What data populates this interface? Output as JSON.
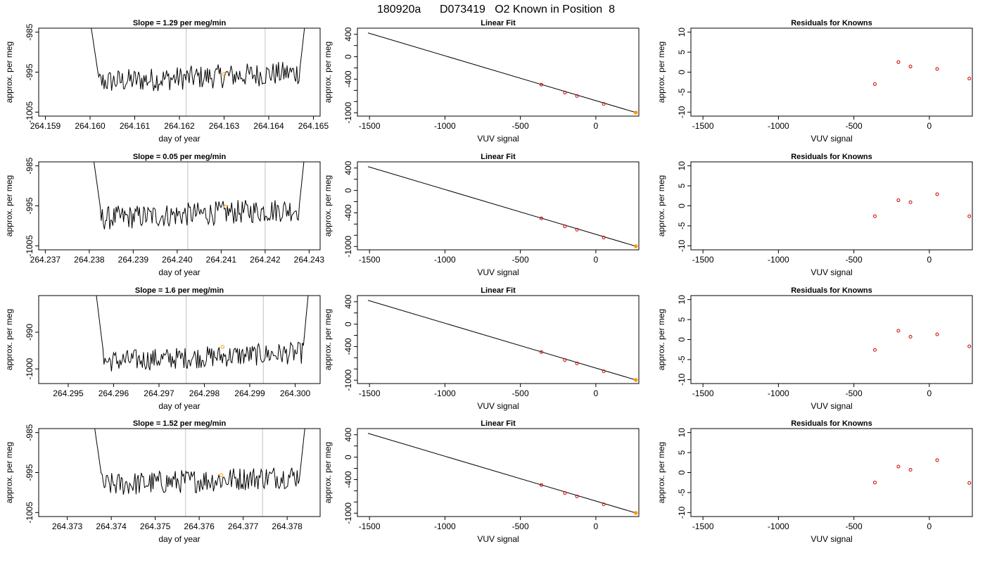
{
  "page_title": "180920a      D073419   O2 Known in Position  8",
  "colors": {
    "line": "#000000",
    "grid": "#cccccc",
    "point_highlight": "#ff9900",
    "residual_point": "#cc0000",
    "frame": "#000000"
  },
  "chart_data": [
    {
      "type": "line",
      "row": 0,
      "title": "Slope =  1.29  per meg/min",
      "xlabel": "day of year",
      "ylabel": "approx. per meg",
      "xlim": [
        264.15885,
        264.16515
      ],
      "ylim": [
        -1006,
        -984
      ],
      "xticks": [
        264.159,
        264.16,
        264.161,
        264.162,
        264.163,
        264.164,
        264.165
      ],
      "xtick_labels": [
        "264.159",
        "264.160",
        "264.161",
        "264.162",
        "264.163",
        "264.164",
        "264.165"
      ],
      "yticks": [
        -1005,
        -995,
        -985
      ],
      "ytick_labels": [
        "-1005",
        "-995",
        "-985"
      ],
      "vlines": [
        264.16215,
        264.16392
      ],
      "x_start": 264.16,
      "x_end": 264.16482,
      "base": -996.3,
      "start_peak": -982,
      "end_peak": -982,
      "highlight_point": {
        "x": 264.163,
        "y": -995.5
      }
    },
    {
      "type": "line",
      "row": 1,
      "title": "Slope =  0.05  per meg/min",
      "xlabel": "day of year",
      "ylabel": "approx. per meg",
      "xlim": [
        264.23685,
        264.24325
      ],
      "ylim": [
        -1006,
        -984
      ],
      "xticks": [
        264.237,
        264.238,
        264.239,
        264.24,
        264.241,
        264.242,
        264.243
      ],
      "xtick_labels": [
        "264.237",
        "264.238",
        "264.239",
        "264.240",
        "264.241",
        "264.242",
        "264.243"
      ],
      "yticks": [
        -1005,
        -995,
        -985
      ],
      "ytick_labels": [
        "-1005",
        "-995",
        "-985"
      ],
      "vlines": [
        264.24024,
        264.242
      ],
      "x_start": 264.23808,
      "x_end": 264.2429,
      "base": -997.0,
      "start_peak": -982,
      "end_peak": -982,
      "highlight_point": {
        "x": 264.2411,
        "y": -995.2
      }
    },
    {
      "type": "line",
      "row": 2,
      "title": "Slope =  1.6  per meg/min",
      "xlabel": "day of year",
      "ylabel": "approx. per meg",
      "xlim": [
        264.29435,
        264.30055
      ],
      "ylim": [
        -1004,
        -980
      ],
      "xticks": [
        264.295,
        264.296,
        264.297,
        264.298,
        264.299,
        264.3
      ],
      "xtick_labels": [
        "264.295",
        "264.296",
        "264.297",
        "264.298",
        "264.299",
        "264.300"
      ],
      "yticks": [
        -1000,
        -990
      ],
      "ytick_labels": [
        "-1000",
        "-990"
      ],
      "vlines": [
        264.2976,
        264.2993
      ],
      "x_start": 264.2956,
      "x_end": 264.3003,
      "base": -996.8,
      "start_peak": -978,
      "end_peak": -978,
      "highlight_point": {
        "x": 264.2984,
        "y": -994.0
      }
    },
    {
      "type": "line",
      "row": 3,
      "title": "Slope =  1.52  per meg/min",
      "xlabel": "day of year",
      "ylabel": "approx. per meg",
      "xlim": [
        264.37235,
        264.37875
      ],
      "ylim": [
        -1006,
        -984
      ],
      "xticks": [
        264.373,
        264.374,
        264.375,
        264.376,
        264.377,
        264.378
      ],
      "xtick_labels": [
        "264.373",
        "264.374",
        "264.375",
        "264.376",
        "264.377",
        "264.378"
      ],
      "yticks": [
        -1005,
        -995,
        -985
      ],
      "ytick_labels": [
        "-1005",
        "-995",
        "-985"
      ],
      "vlines": [
        264.37569,
        264.37744
      ],
      "x_start": 264.3736,
      "x_end": 264.37842,
      "base": -997.0,
      "start_peak": -982,
      "end_peak": -982,
      "highlight_point": {
        "x": 264.3765,
        "y": -995.6
      }
    },
    {
      "type": "scatter",
      "row": 0,
      "title": "Linear Fit",
      "xlabel": "VUV signal",
      "ylabel": "approx. per meg",
      "xlim": [
        -1580,
        285
      ],
      "ylim": [
        -1060,
        510
      ],
      "xticks": [
        -1500,
        -1000,
        -500,
        0
      ],
      "xtick_labels": [
        "-1500",
        "-1000",
        "-500",
        "0"
      ],
      "yticks": [
        -1000,
        -800,
        -600,
        -400,
        -200,
        0,
        200,
        400
      ],
      "ytick_labels": [
        "-1000",
        "",
        "",
        "-400",
        "",
        "0",
        "",
        "400"
      ],
      "fit_line": {
        "x": [
          -1510,
          265
        ],
        "y": [
          425,
          -996
        ]
      },
      "points": {
        "x": [
          -361,
          -205,
          -125,
          52,
          265
        ],
        "y": [
          -498,
          -640,
          -700,
          -842,
          -996
        ]
      },
      "highlight_point": {
        "x": 265,
        "y": -996
      }
    },
    {
      "type": "scatter",
      "row": 1,
      "title": "Linear Fit",
      "xlabel": "VUV signal",
      "ylabel": "approx. per meg",
      "xlim": [
        -1580,
        285
      ],
      "ylim": [
        -1060,
        510
      ],
      "xticks": [
        -1500,
        -1000,
        -500,
        0
      ],
      "xtick_labels": [
        "-1500",
        "-1000",
        "-500",
        "0"
      ],
      "yticks": [
        -1000,
        -800,
        -600,
        -400,
        -200,
        0,
        200,
        400
      ],
      "ytick_labels": [
        "-1000",
        "",
        "",
        "-400",
        "",
        "0",
        "",
        "400"
      ],
      "fit_line": {
        "x": [
          -1510,
          265
        ],
        "y": [
          425,
          -996
        ]
      },
      "points": {
        "x": [
          -361,
          -205,
          -125,
          52,
          265
        ],
        "y": [
          -498,
          -640,
          -700,
          -842,
          -996
        ]
      },
      "highlight_point": {
        "x": 265,
        "y": -996
      }
    },
    {
      "type": "scatter",
      "row": 2,
      "title": "Linear Fit",
      "xlabel": "VUV signal",
      "ylabel": "approx. per meg",
      "xlim": [
        -1580,
        285
      ],
      "ylim": [
        -1060,
        510
      ],
      "xticks": [
        -1500,
        -1000,
        -500,
        0
      ],
      "xtick_labels": [
        "-1500",
        "-1000",
        "-500",
        "0"
      ],
      "yticks": [
        -1000,
        -800,
        -600,
        -400,
        -200,
        0,
        200,
        400
      ],
      "ytick_labels": [
        "-1000",
        "",
        "",
        "-400",
        "",
        "0",
        "",
        "400"
      ],
      "fit_line": {
        "x": [
          -1510,
          265
        ],
        "y": [
          425,
          -996
        ]
      },
      "points": {
        "x": [
          -361,
          -205,
          -125,
          52,
          265
        ],
        "y": [
          -498,
          -640,
          -700,
          -842,
          -996
        ]
      },
      "highlight_point": {
        "x": 265,
        "y": -996
      }
    },
    {
      "type": "scatter",
      "row": 3,
      "title": "Linear Fit",
      "xlabel": "VUV signal",
      "ylabel": "approx. per meg",
      "xlim": [
        -1580,
        285
      ],
      "ylim": [
        -1060,
        510
      ],
      "xticks": [
        -1500,
        -1000,
        -500,
        0
      ],
      "xtick_labels": [
        "-1500",
        "-1000",
        "-500",
        "0"
      ],
      "yticks": [
        -1000,
        -800,
        -600,
        -400,
        -200,
        0,
        200,
        400
      ],
      "ytick_labels": [
        "-1000",
        "",
        "",
        "-400",
        "",
        "0",
        "",
        "400"
      ],
      "fit_line": {
        "x": [
          -1510,
          265
        ],
        "y": [
          425,
          -996
        ]
      },
      "points": {
        "x": [
          -361,
          -205,
          -125,
          52,
          265
        ],
        "y": [
          -498,
          -640,
          -700,
          -842,
          -996
        ]
      },
      "highlight_point": {
        "x": 265,
        "y": -996
      }
    },
    {
      "type": "scatter",
      "row": 0,
      "title": "Residuals for Knowns",
      "xlabel": "VUV signal",
      "ylabel": "approx. per meg",
      "xlim": [
        -1580,
        285
      ],
      "ylim": [
        -11,
        11
      ],
      "xticks": [
        -1500,
        -1000,
        -500,
        0
      ],
      "xtick_labels": [
        "-1500",
        "-1000",
        "-500",
        "0"
      ],
      "yticks": [
        -10,
        -5,
        0,
        5,
        10
      ],
      "ytick_labels": [
        "-10",
        "-5",
        "0",
        "5",
        "10"
      ],
      "points": {
        "x": [
          -361,
          -205,
          -125,
          52,
          265
        ],
        "y": [
          -3.0,
          2.5,
          1.4,
          0.8,
          -1.6
        ]
      }
    },
    {
      "type": "scatter",
      "row": 1,
      "title": "Residuals for Knowns",
      "xlabel": "VUV signal",
      "ylabel": "approx. per meg",
      "xlim": [
        -1580,
        285
      ],
      "ylim": [
        -11,
        11
      ],
      "xticks": [
        -1500,
        -1000,
        -500,
        0
      ],
      "xtick_labels": [
        "-1500",
        "-1000",
        "-500",
        "0"
      ],
      "yticks": [
        -10,
        -5,
        0,
        5,
        10
      ],
      "ytick_labels": [
        "-10",
        "-5",
        "0",
        "5",
        "10"
      ],
      "points": {
        "x": [
          -361,
          -205,
          -125,
          52,
          265
        ],
        "y": [
          -2.6,
          1.4,
          0.9,
          2.9,
          -2.6
        ]
      }
    },
    {
      "type": "scatter",
      "row": 2,
      "title": "Residuals for Knowns",
      "xlabel": "VUV signal",
      "ylabel": "approx. per meg",
      "xlim": [
        -1580,
        285
      ],
      "ylim": [
        -11,
        11
      ],
      "xticks": [
        -1500,
        -1000,
        -500,
        0
      ],
      "xtick_labels": [
        "-1500",
        "-1000",
        "-500",
        "0"
      ],
      "yticks": [
        -10,
        -5,
        0,
        5,
        10
      ],
      "ytick_labels": [
        "-10",
        "-5",
        "0",
        "5",
        "10"
      ],
      "points": {
        "x": [
          -361,
          -205,
          -125,
          52,
          265
        ],
        "y": [
          -2.6,
          2.2,
          0.7,
          1.3,
          -1.7
        ]
      }
    },
    {
      "type": "scatter",
      "row": 3,
      "title": "Residuals for Knowns",
      "xlabel": "VUV signal",
      "ylabel": "approx. per meg",
      "xlim": [
        -1580,
        285
      ],
      "ylim": [
        -11,
        11
      ],
      "xticks": [
        -1500,
        -1000,
        -500,
        0
      ],
      "xtick_labels": [
        "-1500",
        "-1000",
        "-500",
        "0"
      ],
      "yticks": [
        -10,
        -5,
        0,
        5,
        10
      ],
      "ytick_labels": [
        "-10",
        "-5",
        "0",
        "5",
        "10"
      ],
      "points": {
        "x": [
          -361,
          -205,
          -125,
          52,
          265
        ],
        "y": [
          -2.5,
          1.5,
          0.7,
          3.1,
          -2.6
        ]
      }
    }
  ]
}
